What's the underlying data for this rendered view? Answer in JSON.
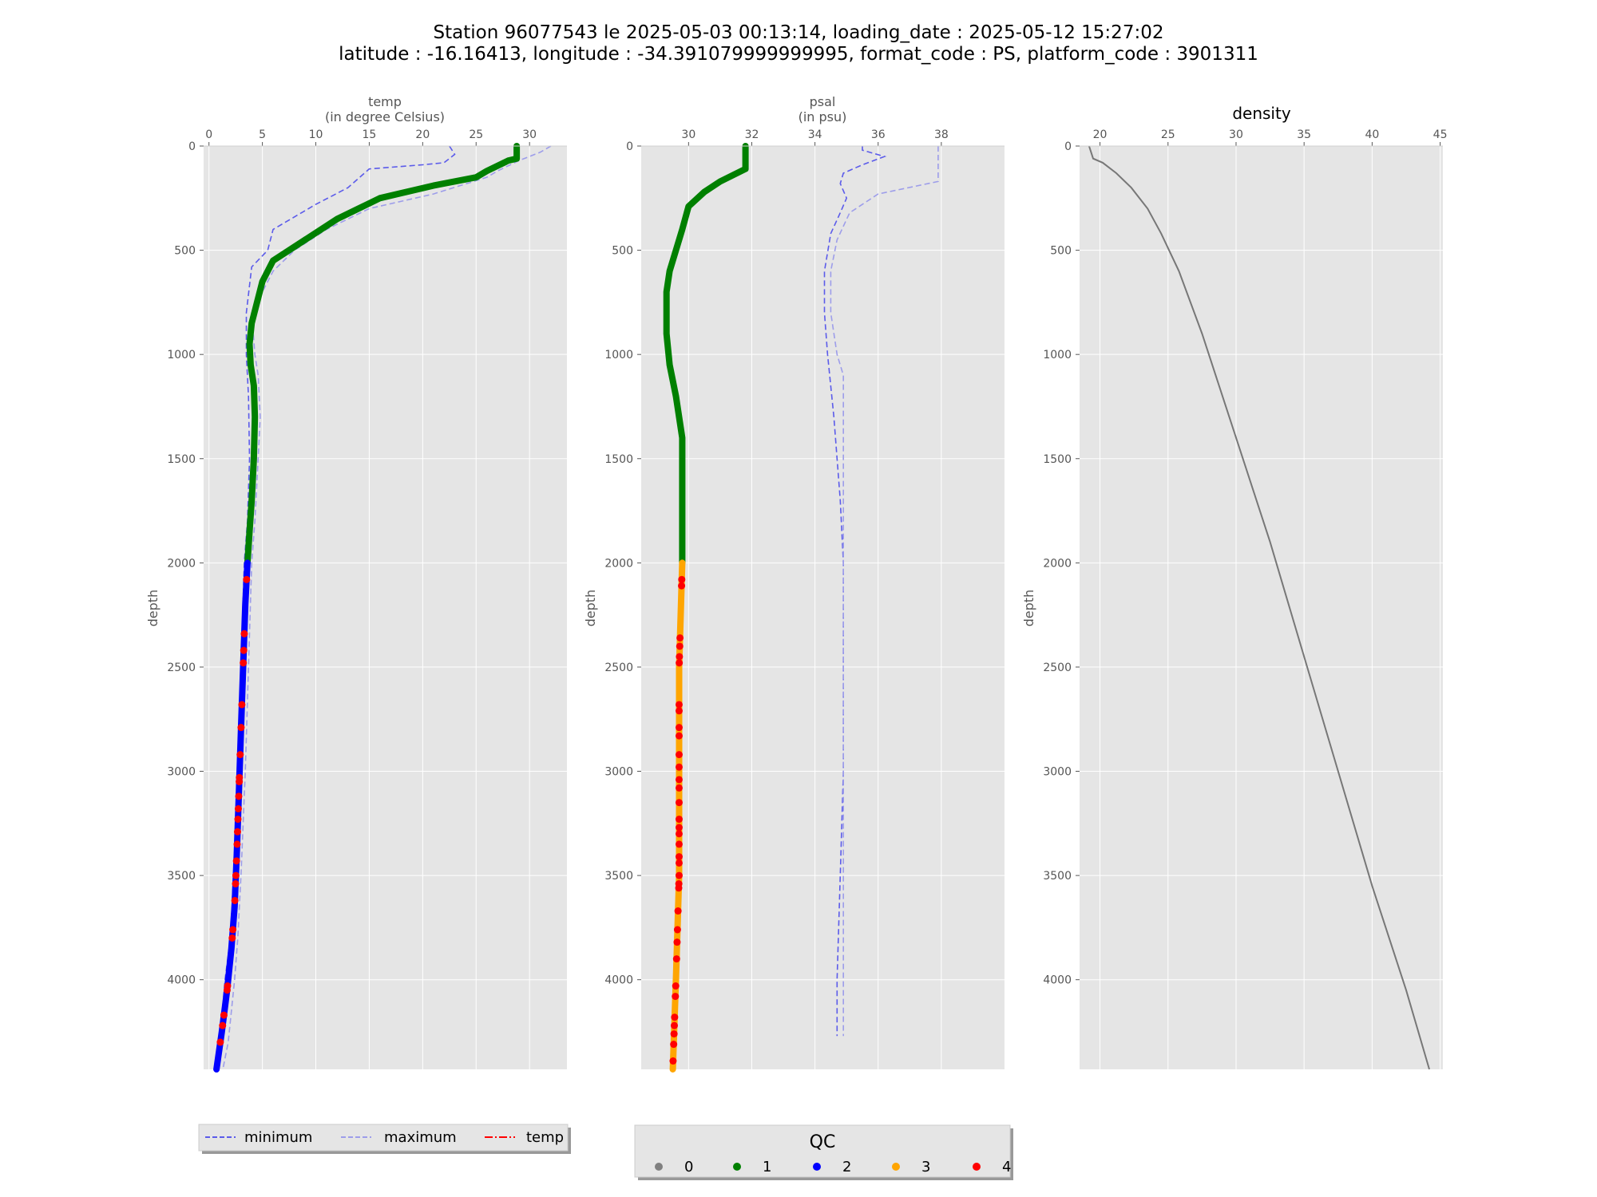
{
  "figure": {
    "title_line1": "Station 96077543 le 2025-05-03 00:13:14, loading_date : 2025-05-12 15:27:02",
    "title_line2": "latitude : -16.16413, longitude : -34.391079999999995, format_code : PS, platform_code : 3901311"
  },
  "colors": {
    "axes_bg": "#e5e5e5",
    "grid": "#ffffff",
    "minimum": "#5b5bea",
    "maximum": "#9d9dea",
    "density": "#777777",
    "qc0": "#808080",
    "qc1": "#008000",
    "qc2": "#0000ff",
    "qc3": "#ffa500",
    "qc4": "#ff0000",
    "temp_legend": "#ff0000"
  },
  "legend_lines": {
    "minimum": "minimum",
    "maximum": "maximum",
    "temp": "temp"
  },
  "legend_qc": {
    "title": "QC",
    "items": [
      "0",
      "1",
      "2",
      "3",
      "4"
    ]
  },
  "chart_data": [
    {
      "type": "line",
      "title": "temp\n(in degree Celsius)",
      "title_line1": "temp",
      "title_line2": "(in degree Celsius)",
      "ylabel": "depth",
      "xlim": [
        -0.5,
        33.5
      ],
      "ylim": [
        4430,
        0
      ],
      "y_inverted": true,
      "x_position": "top",
      "xticks": [
        0,
        5,
        10,
        15,
        20,
        25,
        30
      ],
      "yticks": [
        0,
        500,
        1000,
        1500,
        2000,
        2500,
        3000,
        3500,
        4000
      ],
      "series": [
        {
          "name": "minimum",
          "style": "dashed",
          "points": [
            [
              22.5,
              0
            ],
            [
              23,
              40
            ],
            [
              22,
              80
            ],
            [
              20,
              90
            ],
            [
              15,
              110
            ],
            [
              13,
              200
            ],
            [
              10,
              280
            ],
            [
              6,
              400
            ],
            [
              5.5,
              500
            ],
            [
              4,
              580
            ],
            [
              3.5,
              800
            ],
            [
              3.5,
              1000
            ],
            [
              3.7,
              1200
            ],
            [
              3.8,
              1500
            ],
            [
              3.6,
              1800
            ],
            [
              3.3,
              2000
            ],
            [
              3,
              2500
            ],
            [
              2.7,
              3000
            ],
            [
              2.3,
              3500
            ],
            [
              2,
              3800
            ],
            [
              1.5,
              4000
            ],
            [
              1,
              4300
            ],
            [
              0.8,
              4430
            ]
          ]
        },
        {
          "name": "maximum",
          "style": "dashed",
          "points": [
            [
              32,
              0
            ],
            [
              31,
              30
            ],
            [
              29,
              70
            ],
            [
              27,
              120
            ],
            [
              26,
              150
            ],
            [
              21,
              230
            ],
            [
              15,
              300
            ],
            [
              11,
              400
            ],
            [
              8,
              500
            ],
            [
              6,
              600
            ],
            [
              5,
              700
            ],
            [
              4,
              800
            ],
            [
              4.3,
              1000
            ],
            [
              4.6,
              1100
            ],
            [
              4.8,
              1300
            ],
            [
              4.6,
              1500
            ],
            [
              4.3,
              1800
            ],
            [
              4,
              2000
            ],
            [
              3.7,
              2500
            ],
            [
              3.4,
              3000
            ],
            [
              3,
              3500
            ],
            [
              2.7,
              3800
            ],
            [
              2.4,
              4000
            ],
            [
              1.8,
              4300
            ],
            [
              1.3,
              4430
            ]
          ]
        },
        {
          "name": "temp",
          "style": "qc",
          "segments": [
            {
              "qc": 1,
              "points": [
                [
                  28.8,
                  0
                ],
                [
                  28.8,
                  60
                ],
                [
                  28,
                  70
                ],
                [
                  26,
                  120
                ],
                [
                  25,
                  150
                ],
                [
                  21,
                  190
                ],
                [
                  16,
                  250
                ],
                [
                  14,
                  300
                ],
                [
                  12,
                  350
                ],
                [
                  9,
                  450
                ],
                [
                  6,
                  550
                ],
                [
                  5,
                  650
                ],
                [
                  4.5,
                  750
                ],
                [
                  4,
                  850
                ],
                [
                  3.8,
                  950
                ],
                [
                  3.9,
                  1050
                ],
                [
                  4.2,
                  1150
                ],
                [
                  4.3,
                  1300
                ],
                [
                  4.2,
                  1500
                ],
                [
                  4,
                  1700
                ],
                [
                  3.8,
                  1850
                ],
                [
                  3.6,
                  2000
                ]
              ]
            },
            {
              "qc": 2,
              "points": [
                [
                  3.6,
                  2000
                ],
                [
                  3.4,
                  2200
                ],
                [
                  3.2,
                  2500
                ],
                [
                  3.0,
                  2800
                ],
                [
                  2.8,
                  3100
                ],
                [
                  2.6,
                  3400
                ],
                [
                  2.4,
                  3650
                ],
                [
                  2.1,
                  3850
                ],
                [
                  1.7,
                  4050
                ],
                [
                  1.2,
                  4250
                ],
                [
                  0.7,
                  4430
                ]
              ]
            }
          ],
          "qc4_depths": [
            2080,
            2340,
            2420,
            2480,
            2680,
            2790,
            2920,
            3030,
            3050,
            3120,
            3180,
            3230,
            3290,
            3350,
            3430,
            3500,
            3540,
            3620,
            3760,
            3800,
            4030,
            4050,
            4170,
            4220,
            4300
          ]
        }
      ]
    },
    {
      "type": "line",
      "title": "psal\n(in psu)",
      "title_line1": "psal",
      "title_line2": "(in psu)",
      "ylabel": "depth",
      "xlim": [
        28.5,
        40
      ],
      "ylim": [
        4430,
        0
      ],
      "y_inverted": true,
      "x_position": "top",
      "xticks": [
        30,
        32,
        34,
        36,
        38
      ],
      "yticks": [
        0,
        500,
        1000,
        1500,
        2000,
        2500,
        3000,
        3500,
        4000
      ],
      "series": [
        {
          "name": "minimum",
          "style": "dashed",
          "points": [
            [
              35.5,
              0
            ],
            [
              35.5,
              20
            ],
            [
              36.2,
              50
            ],
            [
              35.5,
              90
            ],
            [
              34.9,
              130
            ],
            [
              34.8,
              180
            ],
            [
              35,
              250
            ],
            [
              34.8,
              320
            ],
            [
              34.5,
              420
            ],
            [
              34.3,
              600
            ],
            [
              34.3,
              800
            ],
            [
              34.4,
              1000
            ],
            [
              34.6,
              1300
            ],
            [
              34.8,
              1700
            ],
            [
              34.9,
              2000
            ],
            [
              34.9,
              2500
            ],
            [
              34.9,
              3000
            ],
            [
              34.8,
              3500
            ],
            [
              34.7,
              4000
            ],
            [
              34.7,
              4270
            ]
          ]
        },
        {
          "name": "maximum",
          "style": "dashed",
          "points": [
            [
              37.9,
              0
            ],
            [
              37.9,
              100
            ],
            [
              37.9,
              170
            ],
            [
              36,
              230
            ],
            [
              35.1,
              320
            ],
            [
              34.7,
              450
            ],
            [
              34.5,
              600
            ],
            [
              34.5,
              800
            ],
            [
              34.7,
              1000
            ],
            [
              34.9,
              1100
            ],
            [
              34.9,
              1500
            ],
            [
              34.9,
              2000
            ],
            [
              34.9,
              4270
            ]
          ]
        }
      ],
      "profile_segments": [
        {
          "qc": 1,
          "points": [
            [
              31.8,
              0
            ],
            [
              31.8,
              110
            ],
            [
              31,
              170
            ],
            [
              30.5,
              220
            ],
            [
              30,
              290
            ],
            [
              29.8,
              400
            ],
            [
              29.6,
              500
            ],
            [
              29.4,
              600
            ],
            [
              29.3,
              700
            ],
            [
              29.3,
              900
            ],
            [
              29.4,
              1050
            ],
            [
              29.6,
              1200
            ],
            [
              29.8,
              1400
            ],
            [
              29.8,
              1700
            ],
            [
              29.8,
              2000
            ]
          ]
        },
        {
          "qc": 3,
          "points": [
            [
              29.8,
              2000
            ],
            [
              29.7,
              2500
            ],
            [
              29.7,
              3000
            ],
            [
              29.7,
              3500
            ],
            [
              29.6,
              4000
            ],
            [
              29.5,
              4430
            ]
          ]
        }
      ],
      "qc4_depths": [
        2080,
        2110,
        2360,
        2400,
        2450,
        2480,
        2680,
        2710,
        2790,
        2830,
        2920,
        2980,
        3040,
        3080,
        3150,
        3230,
        3270,
        3300,
        3350,
        3410,
        3440,
        3500,
        3540,
        3560,
        3670,
        3760,
        3820,
        3900,
        4030,
        4080,
        4180,
        4220,
        4260,
        4310,
        4390
      ]
    },
    {
      "type": "line",
      "title": "density",
      "ylabel": "depth",
      "xlim": [
        18.5,
        45.2
      ],
      "ylim": [
        4430,
        0
      ],
      "y_inverted": true,
      "x_position": "top",
      "xticks": [
        20,
        25,
        30,
        35,
        40,
        45
      ],
      "yticks": [
        0,
        500,
        1000,
        1500,
        2000,
        2500,
        3000,
        3500,
        4000
      ],
      "series": [
        {
          "name": "density",
          "points": [
            [
              19.2,
              0
            ],
            [
              19.5,
              60
            ],
            [
              20.2,
              80
            ],
            [
              21.2,
              130
            ],
            [
              22.3,
              200
            ],
            [
              23.5,
              300
            ],
            [
              24.5,
              420
            ],
            [
              25.8,
              600
            ],
            [
              27.5,
              900
            ],
            [
              30,
              1400
            ],
            [
              32.5,
              1900
            ],
            [
              35,
              2450
            ],
            [
              37.5,
              3000
            ],
            [
              40,
              3550
            ],
            [
              42.5,
              4050
            ],
            [
              44.2,
              4430
            ]
          ]
        }
      ]
    }
  ]
}
